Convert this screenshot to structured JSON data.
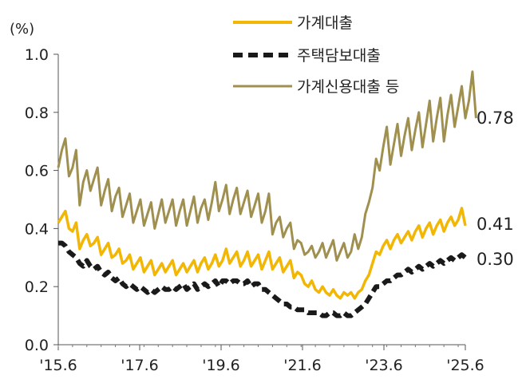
{
  "chart_data": {
    "type": "line",
    "unit_label": "(%)",
    "ylim": [
      0.0,
      1.0
    ],
    "y_ticks": [
      "0.0",
      "0.2",
      "0.4",
      "0.6",
      "0.8",
      "1.0"
    ],
    "x_tick_labels": [
      "'15.6",
      "'17.6",
      "'19.6",
      "'21.6",
      "'23.6",
      "'25.6"
    ],
    "grid": false,
    "legend_position": "top-center",
    "series": [
      {
        "name": "가계대출",
        "color": "#F2B705",
        "style": "solid",
        "end_label": "0.41",
        "values": [
          0.42,
          0.44,
          0.46,
          0.4,
          0.39,
          0.42,
          0.33,
          0.36,
          0.38,
          0.34,
          0.35,
          0.37,
          0.31,
          0.33,
          0.35,
          0.3,
          0.31,
          0.33,
          0.28,
          0.29,
          0.31,
          0.26,
          0.28,
          0.3,
          0.25,
          0.27,
          0.29,
          0.24,
          0.26,
          0.28,
          0.25,
          0.27,
          0.29,
          0.24,
          0.26,
          0.28,
          0.25,
          0.27,
          0.29,
          0.25,
          0.28,
          0.3,
          0.26,
          0.28,
          0.31,
          0.27,
          0.29,
          0.33,
          0.28,
          0.3,
          0.32,
          0.27,
          0.29,
          0.32,
          0.27,
          0.29,
          0.31,
          0.26,
          0.29,
          0.32,
          0.26,
          0.28,
          0.3,
          0.25,
          0.27,
          0.29,
          0.23,
          0.25,
          0.24,
          0.21,
          0.2,
          0.22,
          0.19,
          0.18,
          0.2,
          0.18,
          0.17,
          0.19,
          0.17,
          0.16,
          0.18,
          0.17,
          0.18,
          0.16,
          0.18,
          0.19,
          0.22,
          0.24,
          0.28,
          0.32,
          0.31,
          0.34,
          0.36,
          0.33,
          0.36,
          0.38,
          0.35,
          0.37,
          0.39,
          0.36,
          0.39,
          0.41,
          0.37,
          0.4,
          0.42,
          0.38,
          0.41,
          0.43,
          0.39,
          0.42,
          0.44,
          0.41,
          0.43,
          0.47,
          0.41
        ]
      },
      {
        "name": "주택담보대출",
        "color": "#1a1a1a",
        "style": "dashed",
        "end_label": "0.30",
        "values": [
          0.35,
          0.35,
          0.34,
          0.32,
          0.31,
          0.3,
          0.28,
          0.27,
          0.29,
          0.27,
          0.26,
          0.27,
          0.25,
          0.24,
          0.25,
          0.23,
          0.22,
          0.23,
          0.21,
          0.2,
          0.21,
          0.2,
          0.19,
          0.2,
          0.19,
          0.18,
          0.19,
          0.18,
          0.19,
          0.2,
          0.19,
          0.19,
          0.2,
          0.19,
          0.2,
          0.21,
          0.19,
          0.2,
          0.21,
          0.19,
          0.2,
          0.21,
          0.2,
          0.21,
          0.22,
          0.2,
          0.22,
          0.22,
          0.21,
          0.22,
          0.22,
          0.21,
          0.21,
          0.22,
          0.2,
          0.21,
          0.21,
          0.19,
          0.19,
          0.18,
          0.17,
          0.16,
          0.15,
          0.14,
          0.14,
          0.13,
          0.13,
          0.12,
          0.12,
          0.12,
          0.11,
          0.11,
          0.11,
          0.11,
          0.1,
          0.1,
          0.11,
          0.11,
          0.1,
          0.1,
          0.11,
          0.1,
          0.1,
          0.11,
          0.12,
          0.13,
          0.14,
          0.16,
          0.18,
          0.2,
          0.2,
          0.21,
          0.22,
          0.22,
          0.23,
          0.24,
          0.24,
          0.25,
          0.26,
          0.25,
          0.26,
          0.27,
          0.26,
          0.27,
          0.28,
          0.27,
          0.28,
          0.29,
          0.28,
          0.29,
          0.3,
          0.29,
          0.3,
          0.31,
          0.3
        ]
      },
      {
        "name": "가계신용대출 등",
        "color": "#A09050",
        "style": "solid",
        "end_label": "0.78",
        "values": [
          0.61,
          0.67,
          0.71,
          0.58,
          0.61,
          0.67,
          0.48,
          0.56,
          0.6,
          0.53,
          0.57,
          0.61,
          0.48,
          0.53,
          0.57,
          0.46,
          0.51,
          0.54,
          0.44,
          0.48,
          0.52,
          0.42,
          0.46,
          0.5,
          0.41,
          0.45,
          0.49,
          0.4,
          0.45,
          0.5,
          0.42,
          0.46,
          0.5,
          0.41,
          0.46,
          0.5,
          0.41,
          0.46,
          0.51,
          0.42,
          0.47,
          0.5,
          0.43,
          0.49,
          0.56,
          0.46,
          0.5,
          0.55,
          0.45,
          0.5,
          0.54,
          0.45,
          0.49,
          0.53,
          0.44,
          0.48,
          0.52,
          0.42,
          0.46,
          0.52,
          0.38,
          0.42,
          0.44,
          0.37,
          0.4,
          0.42,
          0.33,
          0.36,
          0.35,
          0.31,
          0.32,
          0.34,
          0.3,
          0.32,
          0.35,
          0.3,
          0.33,
          0.36,
          0.29,
          0.32,
          0.35,
          0.3,
          0.32,
          0.38,
          0.33,
          0.37,
          0.45,
          0.49,
          0.54,
          0.64,
          0.6,
          0.68,
          0.75,
          0.62,
          0.69,
          0.76,
          0.65,
          0.72,
          0.78,
          0.67,
          0.74,
          0.8,
          0.68,
          0.76,
          0.84,
          0.7,
          0.78,
          0.85,
          0.7,
          0.79,
          0.86,
          0.75,
          0.82,
          0.89,
          0.78,
          0.84,
          0.94,
          0.78
        ]
      }
    ]
  }
}
